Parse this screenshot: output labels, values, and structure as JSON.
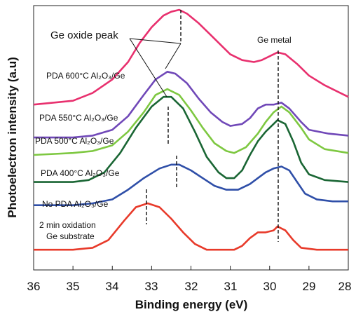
{
  "chart_data": {
    "type": "line",
    "title": "",
    "xlabel": "Binding energy (eV)",
    "ylabel": "Photoelectron intensity (a.u)",
    "xlim": [
      36,
      28
    ],
    "x_reversed": true,
    "xticks": [
      "36",
      "35",
      "34",
      "33",
      "32",
      "31",
      "30",
      "29",
      "28"
    ],
    "grid": false,
    "annotations": [
      {
        "text": "Ge oxide peak"
      },
      {
        "text": "Ge metal"
      }
    ],
    "series": [
      {
        "name": "PDA 600°C Al₂O₃/Ge",
        "color": "#e8306e",
        "points": [
          [
            36,
            0.8
          ],
          [
            35,
            0.82
          ],
          [
            34.5,
            0.86
          ],
          [
            34,
            0.93
          ],
          [
            33.6,
            1.02
          ],
          [
            33.3,
            1.12
          ],
          [
            33,
            1.2
          ],
          [
            32.7,
            1.26
          ],
          [
            32.5,
            1.28
          ],
          [
            32.3,
            1.29
          ],
          [
            32.1,
            1.27
          ],
          [
            31.8,
            1.22
          ],
          [
            31.5,
            1.16
          ],
          [
            31.2,
            1.1
          ],
          [
            31,
            1.06
          ],
          [
            30.7,
            1.03
          ],
          [
            30.4,
            1.02
          ],
          [
            30.2,
            1.03
          ],
          [
            30,
            1.05
          ],
          [
            29.8,
            1.07
          ],
          [
            29.6,
            1.06
          ],
          [
            29.3,
            1.01
          ],
          [
            29,
            0.95
          ],
          [
            28.6,
            0.9
          ],
          [
            28,
            0.84
          ]
        ]
      },
      {
        "name": "PDA 550°C Al₂O₃/Ge",
        "color": "#7048b8",
        "points": [
          [
            36,
            0.63
          ],
          [
            35,
            0.63
          ],
          [
            34.5,
            0.64
          ],
          [
            34,
            0.67
          ],
          [
            33.6,
            0.74
          ],
          [
            33.2,
            0.85
          ],
          [
            32.9,
            0.93
          ],
          [
            32.6,
            0.97
          ],
          [
            32.4,
            0.96
          ],
          [
            32.1,
            0.91
          ],
          [
            31.8,
            0.83
          ],
          [
            31.5,
            0.76
          ],
          [
            31.2,
            0.71
          ],
          [
            31,
            0.69
          ],
          [
            30.7,
            0.7
          ],
          [
            30.5,
            0.73
          ],
          [
            30.3,
            0.78
          ],
          [
            30.1,
            0.8
          ],
          [
            29.9,
            0.8
          ],
          [
            29.7,
            0.81
          ],
          [
            29.5,
            0.78
          ],
          [
            29.2,
            0.71
          ],
          [
            29,
            0.67
          ],
          [
            28.5,
            0.65
          ],
          [
            28,
            0.64
          ]
        ]
      },
      {
        "name": "PDA 500°C Al₂O₃/Ge",
        "color": "#7ec841",
        "points": [
          [
            36,
            0.54
          ],
          [
            35,
            0.55
          ],
          [
            34.5,
            0.56
          ],
          [
            34,
            0.59
          ],
          [
            33.6,
            0.66
          ],
          [
            33.2,
            0.76
          ],
          [
            32.9,
            0.85
          ],
          [
            32.6,
            0.88
          ],
          [
            32.3,
            0.85
          ],
          [
            32,
            0.77
          ],
          [
            31.7,
            0.68
          ],
          [
            31.4,
            0.6
          ],
          [
            31.1,
            0.56
          ],
          [
            30.9,
            0.55
          ],
          [
            30.6,
            0.58
          ],
          [
            30.3,
            0.65
          ],
          [
            30.1,
            0.71
          ],
          [
            29.9,
            0.76
          ],
          [
            29.7,
            0.79
          ],
          [
            29.5,
            0.76
          ],
          [
            29.2,
            0.68
          ],
          [
            29,
            0.62
          ],
          [
            28.6,
            0.57
          ],
          [
            28,
            0.55
          ]
        ]
      },
      {
        "name": "PDA 400°C Al₂O₃/Ge",
        "color": "#1a6634",
        "points": [
          [
            36,
            0.4
          ],
          [
            35,
            0.4
          ],
          [
            34.6,
            0.41
          ],
          [
            34.2,
            0.45
          ],
          [
            33.8,
            0.55
          ],
          [
            33.4,
            0.68
          ],
          [
            33,
            0.79
          ],
          [
            32.7,
            0.84
          ],
          [
            32.5,
            0.84
          ],
          [
            32.2,
            0.78
          ],
          [
            31.9,
            0.66
          ],
          [
            31.6,
            0.53
          ],
          [
            31.3,
            0.45
          ],
          [
            31.1,
            0.42
          ],
          [
            30.9,
            0.42
          ],
          [
            30.7,
            0.46
          ],
          [
            30.5,
            0.54
          ],
          [
            30.3,
            0.61
          ],
          [
            30.1,
            0.66
          ],
          [
            29.9,
            0.7
          ],
          [
            29.8,
            0.72
          ],
          [
            29.6,
            0.7
          ],
          [
            29.4,
            0.61
          ],
          [
            29.2,
            0.5
          ],
          [
            29,
            0.44
          ],
          [
            28.6,
            0.41
          ],
          [
            28,
            0.4
          ]
        ]
      },
      {
        "name": "No PDA Al₂O₃/Ge",
        "color": "#2f4fa8",
        "points": [
          [
            36,
            0.28
          ],
          [
            35,
            0.28
          ],
          [
            34.5,
            0.29
          ],
          [
            34,
            0.31
          ],
          [
            33.6,
            0.36
          ],
          [
            33.2,
            0.42
          ],
          [
            32.8,
            0.47
          ],
          [
            32.5,
            0.49
          ],
          [
            32.3,
            0.49
          ],
          [
            32,
            0.46
          ],
          [
            31.7,
            0.42
          ],
          [
            31.4,
            0.38
          ],
          [
            31.1,
            0.36
          ],
          [
            30.8,
            0.36
          ],
          [
            30.5,
            0.39
          ],
          [
            30.3,
            0.42
          ],
          [
            30.1,
            0.45
          ],
          [
            29.9,
            0.47
          ],
          [
            29.7,
            0.48
          ],
          [
            29.5,
            0.46
          ],
          [
            29.3,
            0.4
          ],
          [
            29.1,
            0.34
          ],
          [
            28.8,
            0.31
          ],
          [
            28.4,
            0.3
          ],
          [
            28,
            0.3
          ]
        ]
      },
      {
        "name": "2 min oxidation Ge substrate",
        "color": "#e83a2a",
        "points": [
          [
            36,
            0.05
          ],
          [
            35,
            0.05
          ],
          [
            34.5,
            0.06
          ],
          [
            34.1,
            0.1
          ],
          [
            33.7,
            0.2
          ],
          [
            33.4,
            0.27
          ],
          [
            33.1,
            0.29
          ],
          [
            32.8,
            0.27
          ],
          [
            32.5,
            0.21
          ],
          [
            32.2,
            0.14
          ],
          [
            31.9,
            0.08
          ],
          [
            31.6,
            0.05
          ],
          [
            31.2,
            0.05
          ],
          [
            30.9,
            0.05
          ],
          [
            30.7,
            0.07
          ],
          [
            30.5,
            0.11
          ],
          [
            30.3,
            0.14
          ],
          [
            30.1,
            0.14
          ],
          [
            29.9,
            0.15
          ],
          [
            29.8,
            0.17
          ],
          [
            29.6,
            0.15
          ],
          [
            29.4,
            0.1
          ],
          [
            29.2,
            0.06
          ],
          [
            28.8,
            0.05
          ],
          [
            28,
            0.05
          ]
        ]
      }
    ]
  }
}
